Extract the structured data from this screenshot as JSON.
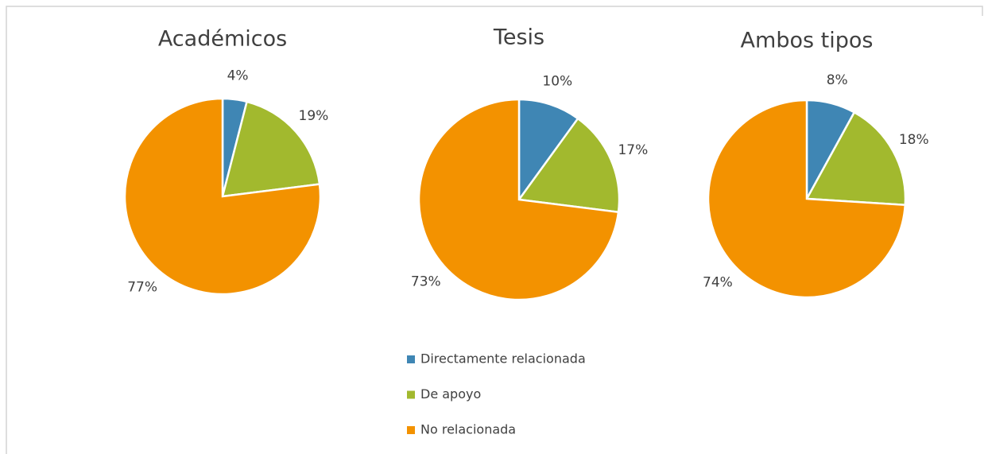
{
  "chart_data": [
    {
      "type": "pie",
      "title": "Académicos",
      "categories": [
        "Directamente relacionada",
        "De apoyo",
        "No relacionada"
      ],
      "values": [
        4,
        19,
        77
      ],
      "value_labels": [
        "4%",
        "19%",
        "77%"
      ],
      "colors": [
        "#3f86b4",
        "#a2b92e",
        "#f39200"
      ]
    },
    {
      "type": "pie",
      "title": "Tesis",
      "categories": [
        "Directamente relacionada",
        "De apoyo",
        "No relacionada"
      ],
      "values": [
        10,
        17,
        73
      ],
      "value_labels": [
        "10%",
        "17%",
        "73%"
      ],
      "colors": [
        "#3f86b4",
        "#a2b92e",
        "#f39200"
      ]
    },
    {
      "type": "pie",
      "title": "Ambos tipos",
      "categories": [
        "Directamente relacionada",
        "De apoyo",
        "No relacionada"
      ],
      "values": [
        8,
        18,
        74
      ],
      "value_labels": [
        "8%",
        "18%",
        "74%"
      ],
      "colors": [
        "#3f86b4",
        "#a2b92e",
        "#f39200"
      ]
    }
  ]
}
